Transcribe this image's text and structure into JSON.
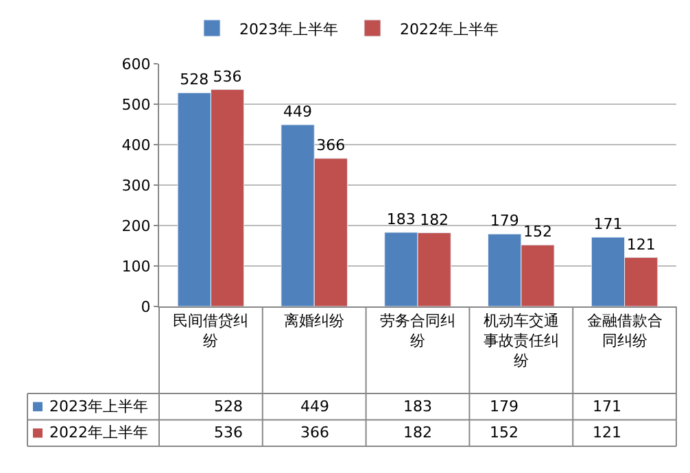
{
  "chart_data": {
    "type": "bar",
    "categories": [
      "民间借贷纠纷",
      "离婚纠纷",
      "劳务合同纠纷",
      "机动车交通事故责任纠纷",
      "金融借款合同纠纷"
    ],
    "series": [
      {
        "name": "2023年上半年",
        "color": "#4f81bd",
        "values": [
          528,
          449,
          183,
          179,
          171
        ],
        "value_labels": [
          "528",
          "449",
          "183",
          "179",
          "171"
        ]
      },
      {
        "name": "2022年上半年",
        "color": "#c0504d",
        "values": [
          536,
          366,
          182,
          152,
          121
        ],
        "value_labels": [
          "536",
          "366",
          "182",
          "152",
          "121"
        ]
      }
    ],
    "ylim": [
      0,
      600
    ],
    "yticks": [
      0,
      100,
      200,
      300,
      400,
      500,
      600
    ],
    "grid": "y",
    "legend": "top",
    "data_labels": true
  }
}
